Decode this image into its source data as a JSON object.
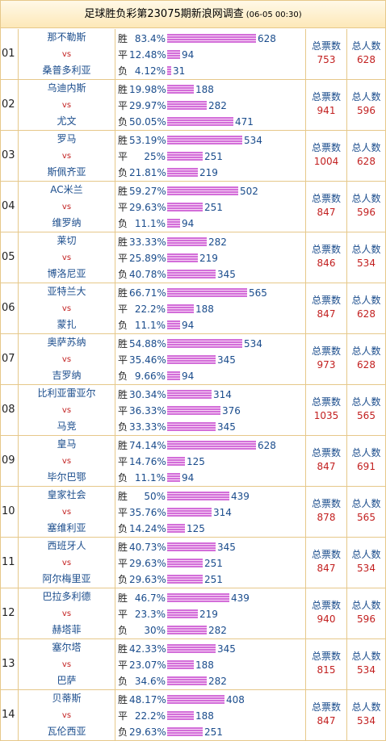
{
  "header": {
    "title": "足球胜负彩第23075期新浪网调查",
    "time": "(06-05 00:30)"
  },
  "labels": {
    "win": "胜",
    "draw": "平",
    "lose": "负",
    "total_votes": "总票数",
    "total_people": "总人数"
  },
  "matches": [
    {
      "no": "01",
      "home": "那不勒斯",
      "vs": "vs",
      "away": "桑普多利亚",
      "win": {
        "pct": "83.4%",
        "count": 628
      },
      "draw": {
        "pct": "12.48%",
        "count": 94
      },
      "lose": {
        "pct": "4.12%",
        "count": 31
      },
      "total_votes": "753",
      "total_people": "628"
    },
    {
      "no": "02",
      "home": "乌迪内斯",
      "vs": "vs",
      "away": "尤文",
      "win": {
        "pct": "19.98%",
        "count": 188
      },
      "draw": {
        "pct": "29.97%",
        "count": 282
      },
      "lose": {
        "pct": "50.05%",
        "count": 471
      },
      "total_votes": "941",
      "total_people": "596"
    },
    {
      "no": "03",
      "home": "罗马",
      "vs": "vs",
      "away": "斯佩齐亚",
      "win": {
        "pct": "53.19%",
        "count": 534
      },
      "draw": {
        "pct": "25%",
        "count": 251
      },
      "lose": {
        "pct": "21.81%",
        "count": 219
      },
      "total_votes": "1004",
      "total_people": "628"
    },
    {
      "no": "04",
      "home": "AC米兰",
      "vs": "vs",
      "away": "维罗纳",
      "win": {
        "pct": "59.27%",
        "count": 502
      },
      "draw": {
        "pct": "29.63%",
        "count": 251
      },
      "lose": {
        "pct": "11.1%",
        "count": 94
      },
      "total_votes": "847",
      "total_people": "596"
    },
    {
      "no": "05",
      "home": "莱切",
      "vs": "vs",
      "away": "博洛尼亚",
      "win": {
        "pct": "33.33%",
        "count": 282
      },
      "draw": {
        "pct": "25.89%",
        "count": 219
      },
      "lose": {
        "pct": "40.78%",
        "count": 345
      },
      "total_votes": "846",
      "total_people": "534"
    },
    {
      "no": "06",
      "home": "亚特兰大",
      "vs": "vs",
      "away": "蒙扎",
      "win": {
        "pct": "66.71%",
        "count": 565
      },
      "draw": {
        "pct": "22.2%",
        "count": 188
      },
      "lose": {
        "pct": "11.1%",
        "count": 94
      },
      "total_votes": "847",
      "total_people": "628"
    },
    {
      "no": "07",
      "home": "奥萨苏纳",
      "vs": "vs",
      "away": "吉罗纳",
      "win": {
        "pct": "54.88%",
        "count": 534
      },
      "draw": {
        "pct": "35.46%",
        "count": 345
      },
      "lose": {
        "pct": "9.66%",
        "count": 94
      },
      "total_votes": "973",
      "total_people": "628"
    },
    {
      "no": "08",
      "home": "比利亚雷亚尔",
      "vs": "vs",
      "away": "马竞",
      "win": {
        "pct": "30.34%",
        "count": 314
      },
      "draw": {
        "pct": "36.33%",
        "count": 376
      },
      "lose": {
        "pct": "33.33%",
        "count": 345
      },
      "total_votes": "1035",
      "total_people": "565"
    },
    {
      "no": "09",
      "home": "皇马",
      "vs": "vs",
      "away": "毕尔巴鄂",
      "win": {
        "pct": "74.14%",
        "count": 628
      },
      "draw": {
        "pct": "14.76%",
        "count": 125
      },
      "lose": {
        "pct": "11.1%",
        "count": 94
      },
      "total_votes": "847",
      "total_people": "691"
    },
    {
      "no": "10",
      "home": "皇家社会",
      "vs": "vs",
      "away": "塞维利亚",
      "win": {
        "pct": "50%",
        "count": 439
      },
      "draw": {
        "pct": "35.76%",
        "count": 314
      },
      "lose": {
        "pct": "14.24%",
        "count": 125
      },
      "total_votes": "878",
      "total_people": "565"
    },
    {
      "no": "11",
      "home": "西班牙人",
      "vs": "vs",
      "away": "阿尔梅里亚",
      "win": {
        "pct": "40.73%",
        "count": 345
      },
      "draw": {
        "pct": "29.63%",
        "count": 251
      },
      "lose": {
        "pct": "29.63%",
        "count": 251
      },
      "total_votes": "847",
      "total_people": "534"
    },
    {
      "no": "12",
      "home": "巴拉多利德",
      "vs": "vs",
      "away": "赫塔菲",
      "win": {
        "pct": "46.7%",
        "count": 439
      },
      "draw": {
        "pct": "23.3%",
        "count": 219
      },
      "lose": {
        "pct": "30%",
        "count": 282
      },
      "total_votes": "940",
      "total_people": "596"
    },
    {
      "no": "13",
      "home": "塞尔塔",
      "vs": "vs",
      "away": "巴萨",
      "win": {
        "pct": "42.33%",
        "count": 345
      },
      "draw": {
        "pct": "23.07%",
        "count": 188
      },
      "lose": {
        "pct": "34.6%",
        "count": 282
      },
      "total_votes": "815",
      "total_people": "534"
    },
    {
      "no": "14",
      "home": "贝蒂斯",
      "vs": "vs",
      "away": "瓦伦西亚",
      "win": {
        "pct": "48.17%",
        "count": 408
      },
      "draw": {
        "pct": "22.2%",
        "count": 188
      },
      "lose": {
        "pct": "29.63%",
        "count": 251
      },
      "total_votes": "847",
      "total_people": "534"
    }
  ]
}
